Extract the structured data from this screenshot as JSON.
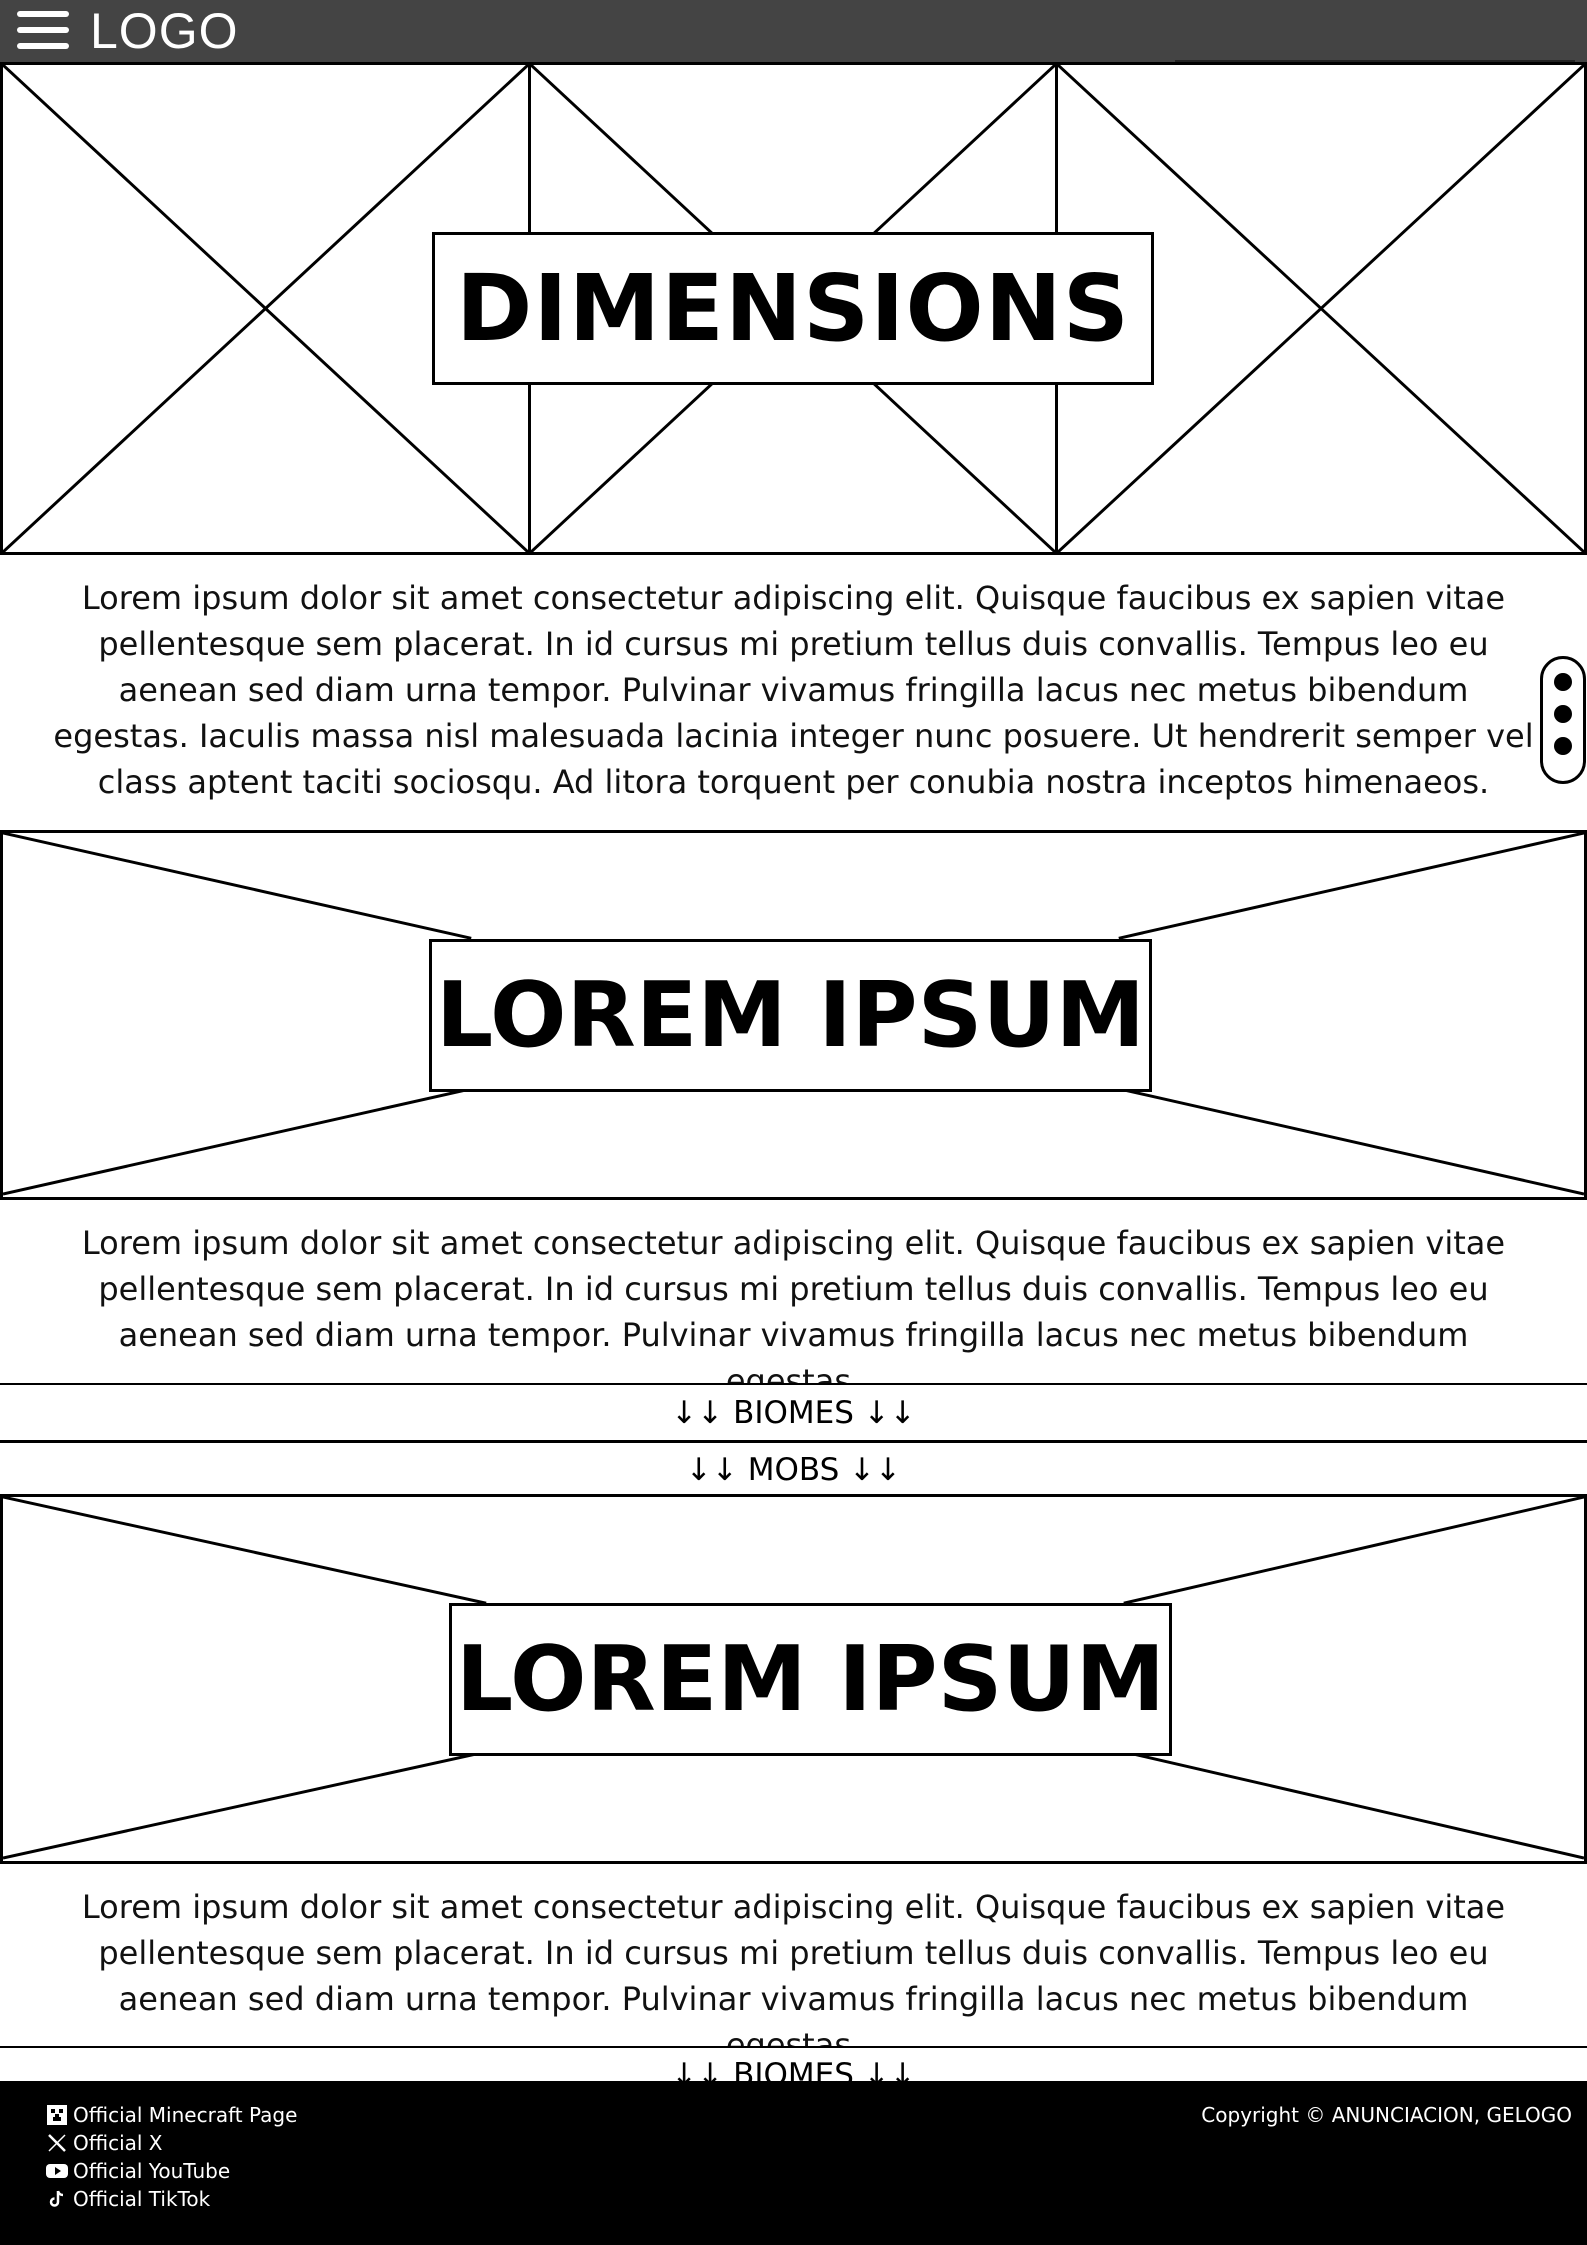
{
  "header": {
    "logo_text": "LOGO"
  },
  "sections": [
    {
      "title": "DIMENSIONS",
      "paragraph": "Lorem ipsum dolor sit amet consectetur adipiscing elit. Quisque faucibus ex sapien vitae pellentesque sem placerat. In id cursus mi pretium tellus duis convallis. Tempus leo eu aenean sed diam urna tempor. Pulvinar vivamus fringilla lacus nec metus bibendum egestas. Iaculis massa nisl malesuada lacinia integer nunc posuere. Ut hendrerit semper vel class aptent taciti sociosqu. Ad litora torquent per conubia nostra inceptos himenaeos."
    },
    {
      "title": "LOREM IPSUM",
      "paragraph": "Lorem ipsum dolor sit amet consectetur adipiscing elit. Quisque faucibus ex sapien vitae pellentesque sem placerat. In id cursus mi pretium tellus duis convallis. Tempus leo eu aenean sed diam urna tempor. Pulvinar vivamus fringilla lacus nec metus bibendum egestas."
    },
    {
      "title": "LOREM IPSUM",
      "paragraph": "Lorem ipsum dolor sit amet consectetur adipiscing elit. Quisque faucibus ex sapien vitae pellentesque sem placerat. In id cursus mi pretium tellus duis convallis. Tempus leo eu aenean sed diam urna tempor. Pulvinar vivamus fringilla lacus nec metus bibendum egestas."
    }
  ],
  "nav": {
    "biomes": "↓↓ BIOMES ↓↓",
    "mobs": "↓↓ MOBS ↓↓",
    "biomes_bottom": "↓↓ BIOMES ↓↓"
  },
  "footer": {
    "links": [
      {
        "icon": "minecraft-icon",
        "label": "Official Minecraft Page"
      },
      {
        "icon": "x-icon",
        "label": "Official X"
      },
      {
        "icon": "youtube-icon",
        "label": "Official YouTube"
      },
      {
        "icon": "tiktok-icon",
        "label": "Official TikTok"
      }
    ],
    "copyright": "Copyright © ANUNCIACION, GELOGO"
  },
  "colors": {
    "header_bg": "#444444",
    "footer_bg": "#000000",
    "line": "#000000"
  }
}
